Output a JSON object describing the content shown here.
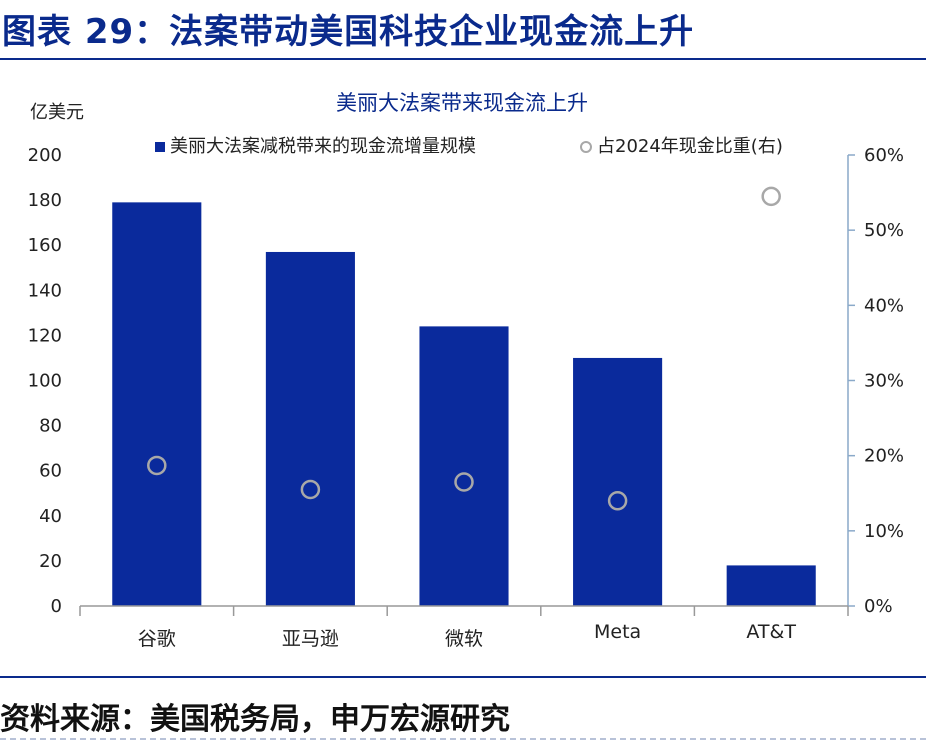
{
  "figure_title": "图表 29：法案带动美国科技企业现金流上升",
  "source_note": "资料来源：美国税务局，申万宏源研究",
  "colors": {
    "bar": "#0a2a9c",
    "marker_stroke": "#a8a8a8",
    "axis": "#8aa9c9",
    "title_blue": "#0a2a8c"
  },
  "chart_data": {
    "type": "bar",
    "title": "美丽大法案带来现金流上升",
    "ylabel": "亿美元",
    "categories": [
      "谷歌",
      "亚马逊",
      "微软",
      "Meta",
      "AT&T"
    ],
    "ylim": [
      0,
      200
    ],
    "y2lim": [
      0,
      0.6
    ],
    "yticks": [
      "0",
      "20",
      "40",
      "60",
      "80",
      "100",
      "120",
      "140",
      "160",
      "180",
      "200"
    ],
    "y2ticks": [
      "0%",
      "10%",
      "20%",
      "30%",
      "40%",
      "50%",
      "60%"
    ],
    "legend_position": "top",
    "series": [
      {
        "name": "美丽大法案减税带来的现金流增量规模",
        "kind": "bar",
        "axis": "left",
        "values": [
          179,
          157,
          124,
          110,
          18
        ]
      },
      {
        "name": "占2024年现金比重(右)",
        "kind": "scatter",
        "axis": "right",
        "values": [
          0.187,
          0.155,
          0.165,
          0.14,
          0.545
        ]
      }
    ]
  }
}
